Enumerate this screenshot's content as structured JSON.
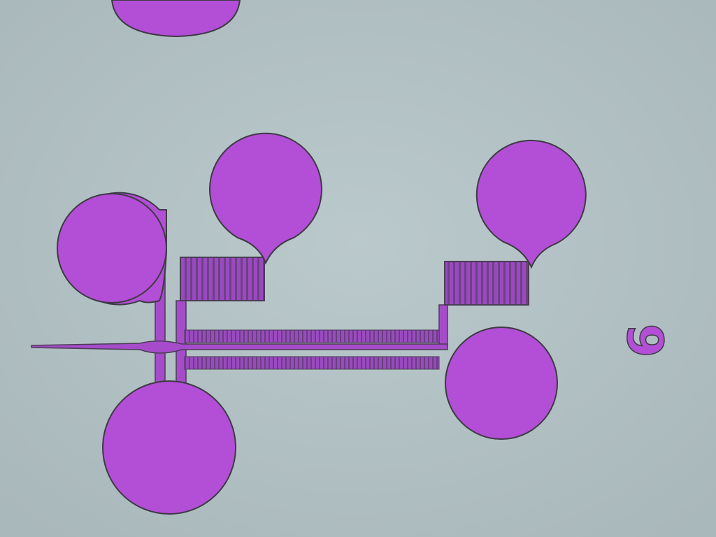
{
  "image": {
    "marker": "6"
  }
}
